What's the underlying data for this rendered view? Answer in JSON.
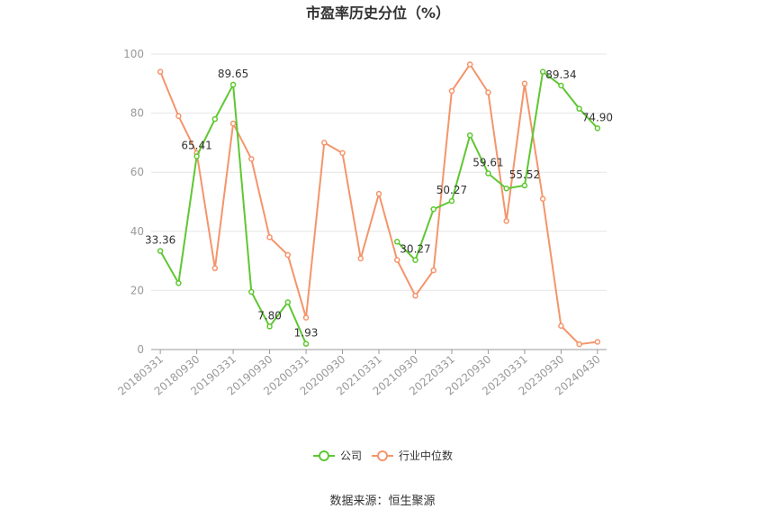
{
  "chart_data": {
    "type": "line",
    "title": "市盈率历史分位（%）",
    "source": "数据来源：恒生聚源",
    "ylim": [
      0,
      100
    ],
    "yticks": [
      "0",
      "20",
      "40",
      "60",
      "80",
      "100"
    ],
    "xtick_labels": [
      "20180331",
      "20180930",
      "20190331",
      "20190930",
      "20200331",
      "20200930",
      "20210331",
      "20210930",
      "20220331",
      "20220930",
      "20230331",
      "20230930",
      "20240430"
    ],
    "x": [
      "20180331",
      "20180630",
      "20180930",
      "20181231",
      "20190331",
      "20190630",
      "20190930",
      "20191231",
      "20200331",
      "20200630",
      "20200930",
      "20201231",
      "20210331",
      "20210630",
      "20210930",
      "20211231",
      "20220331",
      "20220630",
      "20220930",
      "20221231",
      "20230331",
      "20230630",
      "20230930",
      "20231231",
      "20240430"
    ],
    "series": [
      {
        "name": "公司",
        "color": "#5fc732",
        "values": [
          33.36,
          22.5,
          65.41,
          78.0,
          89.65,
          19.5,
          7.8,
          16.0,
          1.93,
          null,
          null,
          null,
          null,
          36.5,
          30.27,
          47.5,
          50.27,
          72.5,
          59.61,
          54.5,
          55.52,
          94.0,
          89.34,
          81.5,
          74.9
        ],
        "labels": {
          "0": "33.36",
          "2": "65.41",
          "4": "89.65",
          "6": "7.80",
          "8": "1.93",
          "14": "30.27",
          "16": "50.27",
          "18": "59.61",
          "20": "55.52",
          "22": "89.34",
          "24": "74.90"
        }
      },
      {
        "name": "行业中位数",
        "color": "#f4956b",
        "values": [
          94.0,
          79.0,
          66.5,
          27.5,
          76.5,
          64.5,
          38.0,
          32.0,
          10.8,
          70.0,
          66.5,
          30.8,
          52.7,
          30.3,
          18.2,
          26.8,
          87.5,
          96.5,
          87.0,
          43.5,
          90.0,
          51.0,
          8.0,
          1.8,
          2.6
        ]
      }
    ],
    "legend_position": "bottom"
  }
}
